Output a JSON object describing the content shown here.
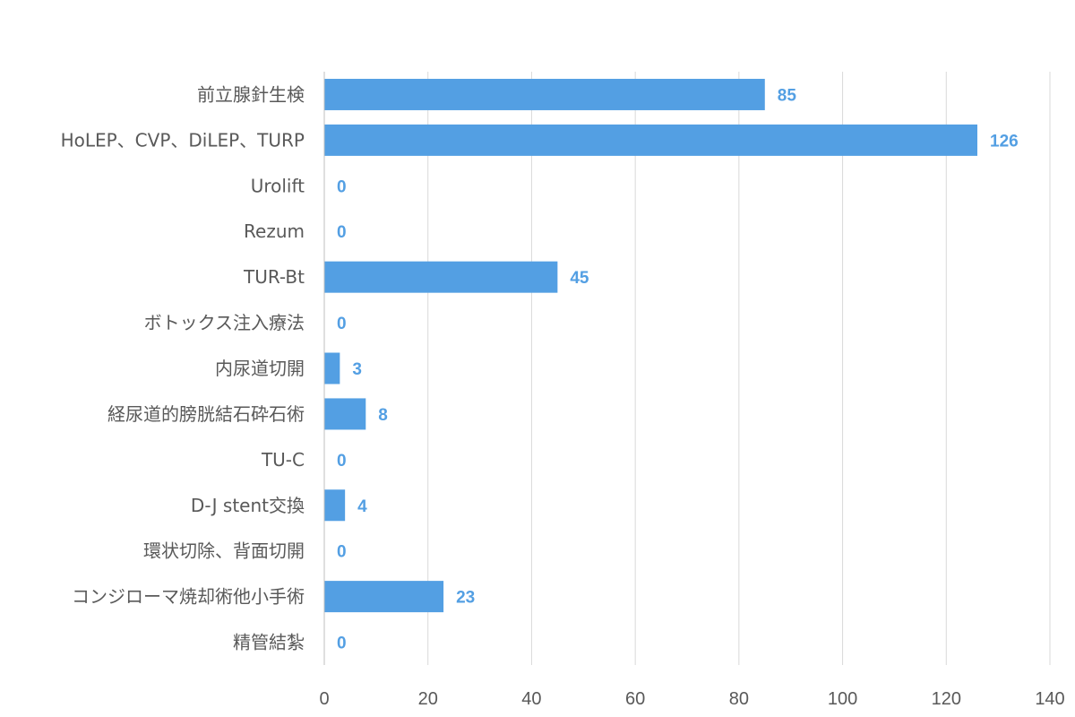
{
  "chart_data": {
    "type": "bar",
    "orientation": "horizontal",
    "categories": [
      "前立腺針生検",
      "HoLEP、CVP、DiLEP、TURP",
      "Urolift",
      "Rezum",
      "TUR-Bt",
      "ボトックス注入療法",
      "内尿道切開",
      "経尿道的膀胱結石砕石術",
      "TU-C",
      "D-J stent交換",
      "環状切除、背面切開",
      "コンジローマ焼却術他小手術",
      "精管結紮"
    ],
    "values": [
      85,
      126,
      0,
      0,
      45,
      0,
      3,
      8,
      0,
      4,
      0,
      23,
      0
    ],
    "xlim": [
      0,
      140
    ],
    "xticks": [
      0,
      20,
      40,
      60,
      80,
      100,
      120,
      140
    ],
    "title": "",
    "xlabel": "",
    "ylabel": "",
    "grid": "vertical",
    "legend": "none",
    "bar_color": "#539fe3",
    "label_color": "#539fe3"
  }
}
